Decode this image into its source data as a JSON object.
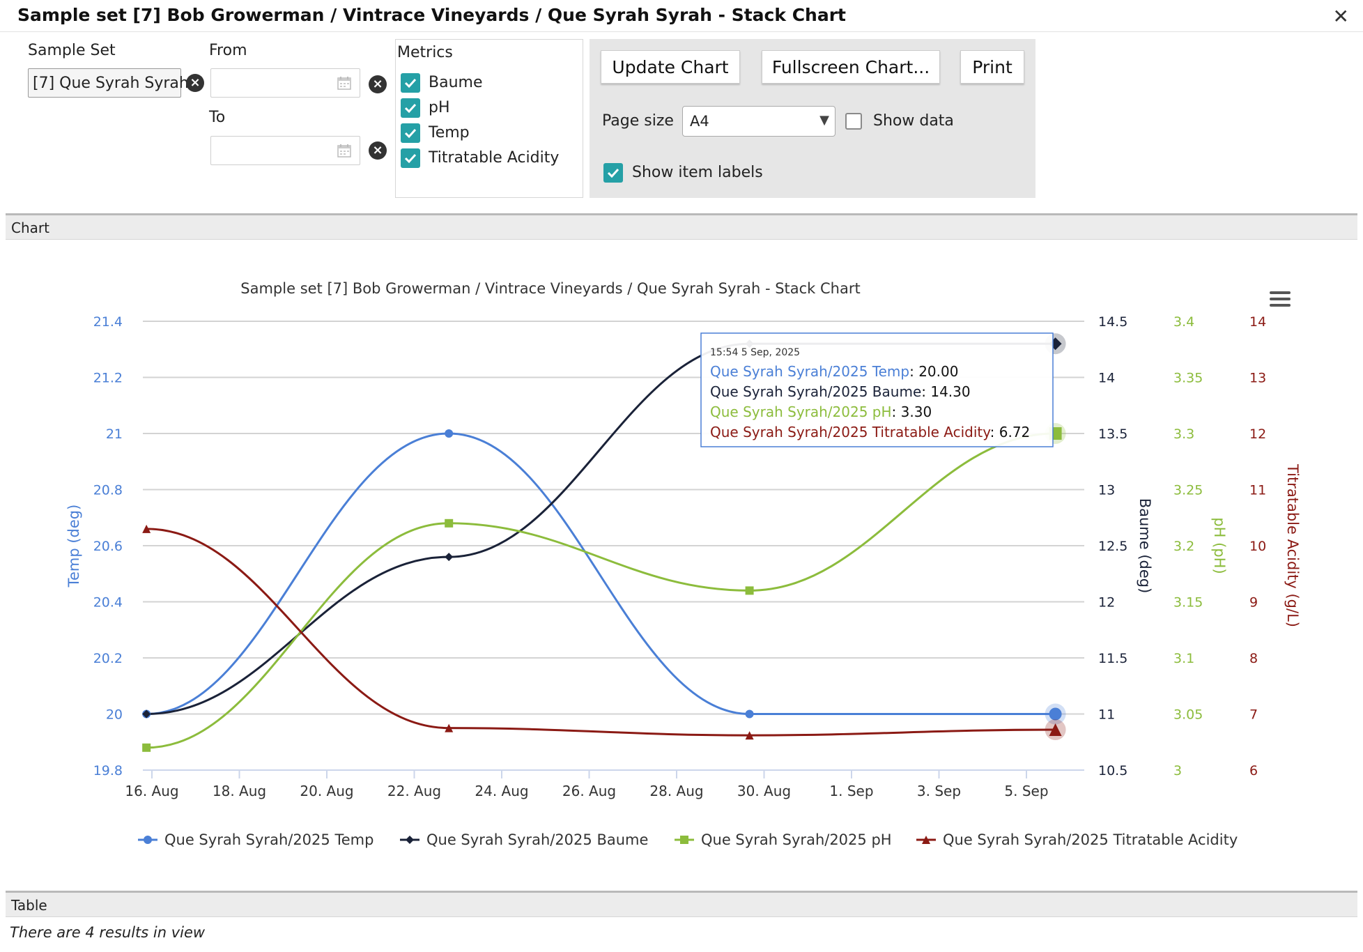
{
  "window": {
    "title": "Sample set [7] Bob Growerman / Vintrace Vineyards / Que Syrah Syrah - Stack Chart",
    "close_symbol": "✕"
  },
  "filters": {
    "sample_set_label": "Sample Set",
    "sample_set_value": "[7] Que Syrah Syrah",
    "from_label": "From",
    "from_value": "",
    "to_label": "To",
    "to_value": ""
  },
  "metrics": {
    "label": "Metrics",
    "items": [
      {
        "label": "Baume",
        "checked": true
      },
      {
        "label": "pH",
        "checked": true
      },
      {
        "label": "Temp",
        "checked": true
      },
      {
        "label": "Titratable Acidity",
        "checked": true
      }
    ]
  },
  "options": {
    "update_chart_label": "Update Chart",
    "fullscreen_chart_label": "Fullscreen Chart...",
    "print_label": "Print",
    "page_size_label": "Page size",
    "page_size_value": "A4",
    "show_data_label": "Show data",
    "show_data_checked": false,
    "show_item_labels_label": "Show item labels",
    "show_item_labels_checked": true
  },
  "sections": {
    "chart_label": "Chart",
    "table_label": "Table",
    "results_text": "There are 4 results in view"
  },
  "colors": {
    "temp": "#4a7fd6",
    "baume": "#1a2238",
    "ph": "#8cbc3c",
    "ta": "#8b1a14",
    "accent_checkbox": "#25a0a6"
  },
  "chart_data": {
    "type": "line",
    "title": "Sample set [7] Bob Growerman / Vintrace Vineyards / Que Syrah Syrah - Stack Chart",
    "x_ticks": [
      "16. Aug",
      "18. Aug",
      "20. Aug",
      "22. Aug",
      "24. Aug",
      "26. Aug",
      "28. Aug",
      "30. Aug",
      "1. Sep",
      "3. Sep",
      "5. Sep"
    ],
    "x_dates": [
      "2025-08-15T21:00",
      "2025-08-22T19:00",
      "2025-08-29T16:00",
      "2025-09-05T15:54"
    ],
    "axes": [
      {
        "id": "temp",
        "label": "Temp (deg)",
        "min": 19.8,
        "max": 21.4,
        "ticks": [
          "19.8",
          "20",
          "20.2",
          "20.4",
          "20.6",
          "20.8",
          "21",
          "21.2",
          "21.4"
        ],
        "color": "#4a7fd6",
        "side": "left"
      },
      {
        "id": "baume",
        "label": "Baume (deg)",
        "min": 10.5,
        "max": 14.5,
        "ticks": [
          "10.5",
          "11",
          "11.5",
          "12",
          "12.5",
          "13",
          "13.5",
          "14",
          "14.5"
        ],
        "color": "#1a2238",
        "side": "right"
      },
      {
        "id": "ph",
        "label": "pH (pH)",
        "min": 3.0,
        "max": 3.4,
        "ticks": [
          "3",
          "3.05",
          "3.1",
          "3.15",
          "3.2",
          "3.25",
          "3.3",
          "3.35",
          "3.4"
        ],
        "color": "#8cbc3c",
        "side": "right"
      },
      {
        "id": "ta",
        "label": "Titratable Acidity (g/L)",
        "min": 6,
        "max": 14,
        "ticks": [
          "6",
          "7",
          "8",
          "9",
          "10",
          "11",
          "12",
          "13",
          "14"
        ],
        "color": "#8b1a14",
        "side": "right"
      }
    ],
    "series": [
      {
        "name": "Que Syrah Syrah/2025 Temp",
        "axis": "temp",
        "marker": "circle",
        "color": "#4a7fd6",
        "values": [
          20.0,
          21.0,
          20.0,
          20.0
        ]
      },
      {
        "name": "Que Syrah Syrah/2025 Baume",
        "axis": "baume",
        "marker": "diamond",
        "color": "#1a2238",
        "values": [
          11.0,
          12.4,
          14.3,
          14.3
        ]
      },
      {
        "name": "Que Syrah Syrah/2025 pH",
        "axis": "ph",
        "marker": "square",
        "color": "#8cbc3c",
        "values": [
          3.02,
          3.22,
          3.16,
          3.3
        ]
      },
      {
        "name": "Que Syrah Syrah/2025 Titratable Acidity",
        "axis": "ta",
        "marker": "triangle",
        "color": "#8b1a14",
        "values": [
          10.3,
          6.75,
          6.62,
          6.72
        ]
      }
    ],
    "tooltip": {
      "time": "15:54 5 Sep, 2025",
      "lines": [
        {
          "series": "Que Syrah Syrah/2025 Temp",
          "value": "20.00",
          "color": "#4a7fd6"
        },
        {
          "series": "Que Syrah Syrah/2025 Baume",
          "value": "14.30",
          "color": "#1a2238"
        },
        {
          "series": "Que Syrah Syrah/2025 pH",
          "value": "3.30",
          "color": "#8cbc3c"
        },
        {
          "series": "Que Syrah Syrah/2025 Titratable Acidity",
          "value": "6.72",
          "color": "#8b1a14"
        }
      ]
    },
    "legend_position": "bottom",
    "grid": true
  }
}
